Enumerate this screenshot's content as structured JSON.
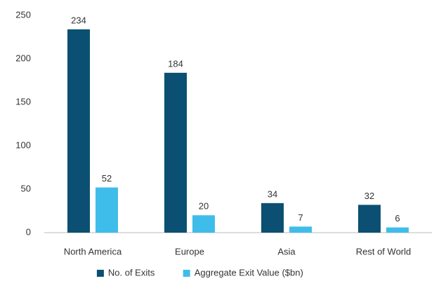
{
  "chart_data": {
    "type": "bar",
    "categories": [
      "North America",
      "Europe",
      "Asia",
      "Rest of World"
    ],
    "series": [
      {
        "name": "No. of Exits",
        "color": "#0b5072",
        "values": [
          234,
          184,
          34,
          32
        ]
      },
      {
        "name": "Aggregate Exit Value ($bn)",
        "color": "#3fbdea",
        "values": [
          52,
          20,
          7,
          6
        ]
      }
    ],
    "ylim": [
      0,
      250
    ],
    "yticks": [
      0,
      50,
      100,
      150,
      200,
      250
    ],
    "grid": false,
    "legend": "bottom"
  }
}
